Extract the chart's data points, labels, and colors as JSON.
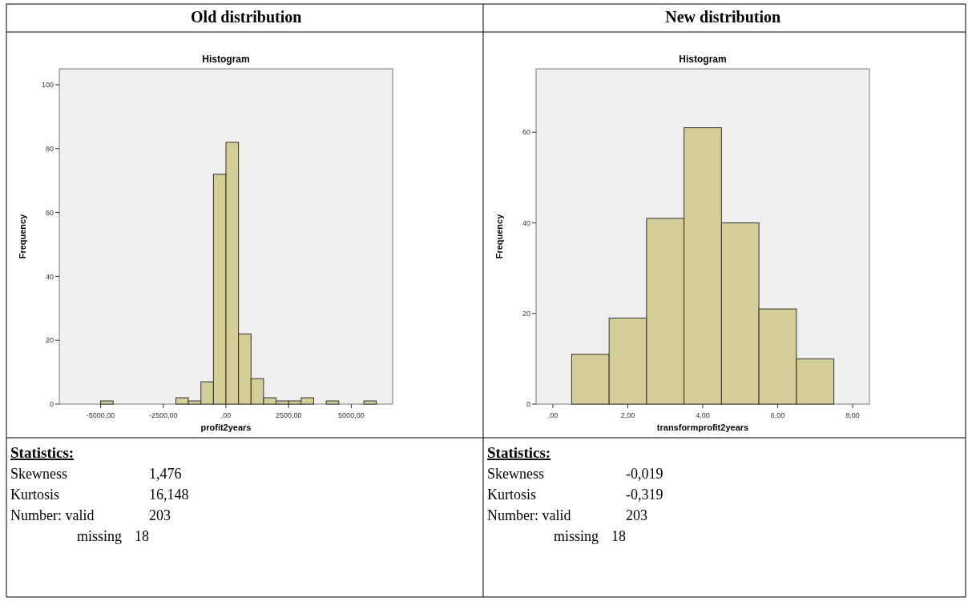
{
  "chart_data": [
    {
      "type": "histogram",
      "title": "Old distribution",
      "subtitle": "Histogram",
      "xlabel": "profit2years",
      "ylabel": "Frequency",
      "color": "#d3ce97",
      "bins": [
        -5000,
        -4500,
        -4000,
        -3500,
        -3000,
        -2500,
        -2000,
        -1500,
        -1000,
        -500,
        0,
        500,
        1000,
        1500,
        2000,
        2500,
        3000,
        3500,
        4000,
        4500,
        5000,
        5500,
        6000
      ],
      "values": [
        1,
        0,
        0,
        0,
        0,
        0,
        2,
        1,
        7,
        72,
        82,
        22,
        8,
        2,
        1,
        1,
        2,
        0,
        1,
        0,
        0,
        1
      ],
      "xlim": [
        -6650,
        6650
      ],
      "xticks": [
        {
          "value": -5000,
          "label": "-5000,00"
        },
        {
          "value": -2500,
          "label": "-2500,00"
        },
        {
          "value": 0,
          "label": ",00"
        },
        {
          "value": 2500,
          "label": "2500,00"
        },
        {
          "value": 5000,
          "label": "5000,00"
        }
      ],
      "ylim": [
        0,
        105
      ],
      "yticks": [
        0,
        20,
        40,
        60,
        80,
        100
      ]
    },
    {
      "type": "histogram",
      "title": "New distribution",
      "subtitle": "Histogram",
      "xlabel": "transformprofit2years",
      "ylabel": "Frequency",
      "color": "#d3ce97",
      "bins": [
        0.5,
        1.5,
        2.5,
        3.5,
        4.5,
        5.5,
        6.5,
        7.5
      ],
      "values": [
        11,
        19,
        41,
        61,
        40,
        21,
        10
      ],
      "xlim": [
        -0.45,
        8.45
      ],
      "xticks": [
        {
          "value": 0,
          "label": ",00"
        },
        {
          "value": 2,
          "label": "2,00"
        },
        {
          "value": 4,
          "label": "4,00"
        },
        {
          "value": 6,
          "label": "6,00"
        },
        {
          "value": 8,
          "label": "8,00"
        }
      ],
      "ylim": [
        0,
        74
      ],
      "yticks": [
        0,
        20,
        40,
        60
      ]
    },
    {
      "type": "other",
      "title": "Statistics:",
      "annotations": [
        "Skewness",
        "1,476",
        "Kurtosis",
        "16,148",
        "Number: valid",
        "203",
        "missing",
        "18"
      ]
    },
    {
      "type": "other",
      "title": "Statistics:",
      "annotations": [
        "Skewness",
        "-0,019",
        "Kurtosis",
        "-0,319",
        "Number: valid",
        "203",
        "missing",
        "18"
      ]
    }
  ]
}
